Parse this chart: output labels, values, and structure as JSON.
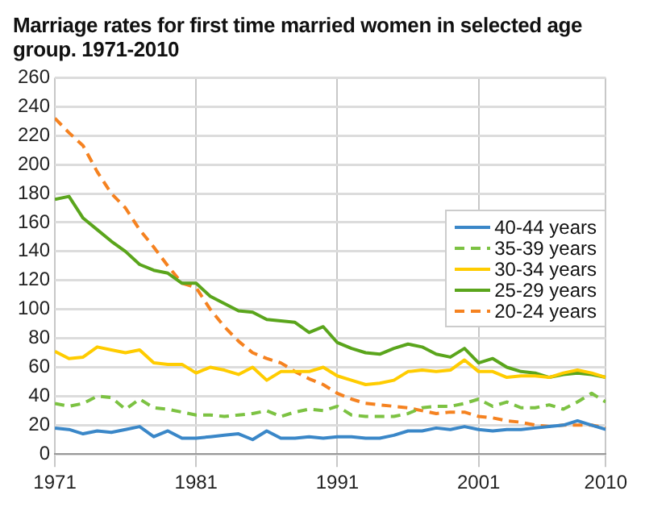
{
  "chart_data": {
    "type": "line",
    "title": "Marriage rates for first time married women in selected age group. 1971-2010",
    "x": [
      1971,
      1972,
      1973,
      1974,
      1975,
      1976,
      1977,
      1978,
      1979,
      1980,
      1981,
      1982,
      1983,
      1984,
      1985,
      1986,
      1987,
      1988,
      1989,
      1990,
      1991,
      1992,
      1993,
      1994,
      1995,
      1996,
      1997,
      1998,
      1999,
      2000,
      2001,
      2002,
      2003,
      2004,
      2005,
      2006,
      2007,
      2008,
      2009,
      2010
    ],
    "series": [
      {
        "name": "40-44 years",
        "color": "#3a87c8",
        "line_style": "solid",
        "values": [
          18,
          17,
          14,
          16,
          15,
          17,
          19,
          12,
          16,
          11,
          11,
          12,
          13,
          14,
          10,
          16,
          11,
          11,
          12,
          11,
          12,
          12,
          11,
          11,
          13,
          16,
          16,
          18,
          17,
          19,
          17,
          16,
          17,
          17,
          18,
          19,
          20,
          23,
          20,
          17
        ]
      },
      {
        "name": "35-39 years",
        "color": "#7cc242",
        "line_style": "dashed",
        "values": [
          35,
          33,
          35,
          40,
          39,
          31,
          38,
          32,
          31,
          29,
          27,
          27,
          26,
          27,
          28,
          30,
          26,
          29,
          31,
          30,
          33,
          27,
          26,
          26,
          26,
          28,
          32,
          33,
          33,
          35,
          38,
          33,
          36,
          32,
          32,
          34,
          31,
          36,
          42,
          36
        ]
      },
      {
        "name": "30-34 years",
        "color": "#ffcc00",
        "line_style": "solid",
        "values": [
          71,
          66,
          67,
          74,
          72,
          70,
          72,
          63,
          62,
          62,
          56,
          60,
          58,
          55,
          60,
          51,
          57,
          57,
          57,
          60,
          54,
          51,
          48,
          49,
          51,
          57,
          58,
          57,
          58,
          65,
          57,
          57,
          53,
          54,
          54,
          53,
          56,
          58,
          56,
          53
        ]
      },
      {
        "name": "25-29 years",
        "color": "#5aa51c",
        "line_style": "solid",
        "values": [
          176,
          178,
          163,
          155,
          147,
          140,
          131,
          127,
          125,
          118,
          118,
          109,
          104,
          99,
          98,
          93,
          92,
          91,
          84,
          88,
          77,
          73,
          70,
          69,
          73,
          76,
          74,
          69,
          67,
          73,
          63,
          66,
          60,
          57,
          56,
          53,
          55,
          56,
          55,
          53
        ]
      },
      {
        "name": "20-24 years",
        "color": "#f58220",
        "line_style": "dashed",
        "values": [
          232,
          222,
          213,
          195,
          180,
          170,
          155,
          143,
          130,
          118,
          115,
          100,
          88,
          78,
          70,
          66,
          63,
          57,
          52,
          48,
          42,
          38,
          35,
          34,
          33,
          32,
          30,
          28,
          29,
          29,
          26,
          25,
          23,
          22,
          20,
          19,
          20,
          20,
          20,
          18
        ]
      }
    ],
    "xlim": [
      1971,
      2010
    ],
    "xticks": [
      1971,
      1981,
      1991,
      2001,
      2010
    ],
    "ylim": [
      0,
      260
    ],
    "yticks": [
      0,
      20,
      40,
      60,
      80,
      100,
      120,
      140,
      160,
      180,
      200,
      220,
      240,
      260
    ],
    "grid": true,
    "legend": "right",
    "marker": "none"
  }
}
